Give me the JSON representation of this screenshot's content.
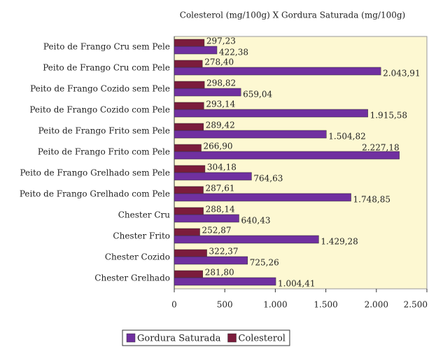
{
  "chart_data": {
    "type": "bar",
    "orientation": "horizontal",
    "title": "Colesterol (mg/100g) X Gordura Saturada (mg/100g)",
    "categories": [
      "Peito de Frango Cru sem Pele",
      "Peito de Frango Cru com Pele",
      "Peito de Frango Cozido sem Pele",
      "Peito de Frango Cozido com Pele",
      "Peito de Frango Frito sem Pele",
      "Peito de Frango Frito com Pele",
      "Peito de Frango Grelhado sem Pele",
      "Peito de Frango Grelhado com Pele",
      "Chester Cru",
      "Chester Frito",
      "Chester Cozido",
      "Chester Grelhado"
    ],
    "series": [
      {
        "name": "Gordura Saturada",
        "color": "#7030a0",
        "values": [
          422.38,
          2043.91,
          659.04,
          1915.58,
          1504.82,
          2227.18,
          764.63,
          1748.85,
          640.43,
          1429.28,
          725.26,
          1004.41
        ],
        "value_labels": [
          "422,38",
          "2.043,91",
          "659,04",
          "1.915,58",
          "1.504,82",
          "2.227,18",
          "764,63",
          "1.748,85",
          "640,43",
          "1.429,28",
          "725,26",
          "1.004,41"
        ]
      },
      {
        "name": "Colesterol",
        "color": "#7b1c3c",
        "values": [
          297.23,
          278.4,
          298.82,
          293.14,
          289.42,
          266.9,
          304.18,
          287.61,
          288.14,
          252.87,
          322.37,
          281.8
        ],
        "value_labels": [
          "297,23",
          "278,40",
          "298,82",
          "293,14",
          "289,42",
          "266,90",
          "304,18",
          "287,61",
          "288,14",
          "252,87",
          "322,37",
          "281,80"
        ]
      }
    ],
    "xlim": [
      0,
      2500
    ],
    "xticks": [
      0,
      500,
      {
        "value": 1000,
        "label": "1.000"
      },
      {
        "value": 1500,
        "label": "1.500"
      },
      {
        "value": 2000,
        "label": "2.000"
      },
      {
        "value": 2500,
        "label": "2.500"
      }
    ],
    "background": "#fdf8d2",
    "legend": "bottom"
  }
}
